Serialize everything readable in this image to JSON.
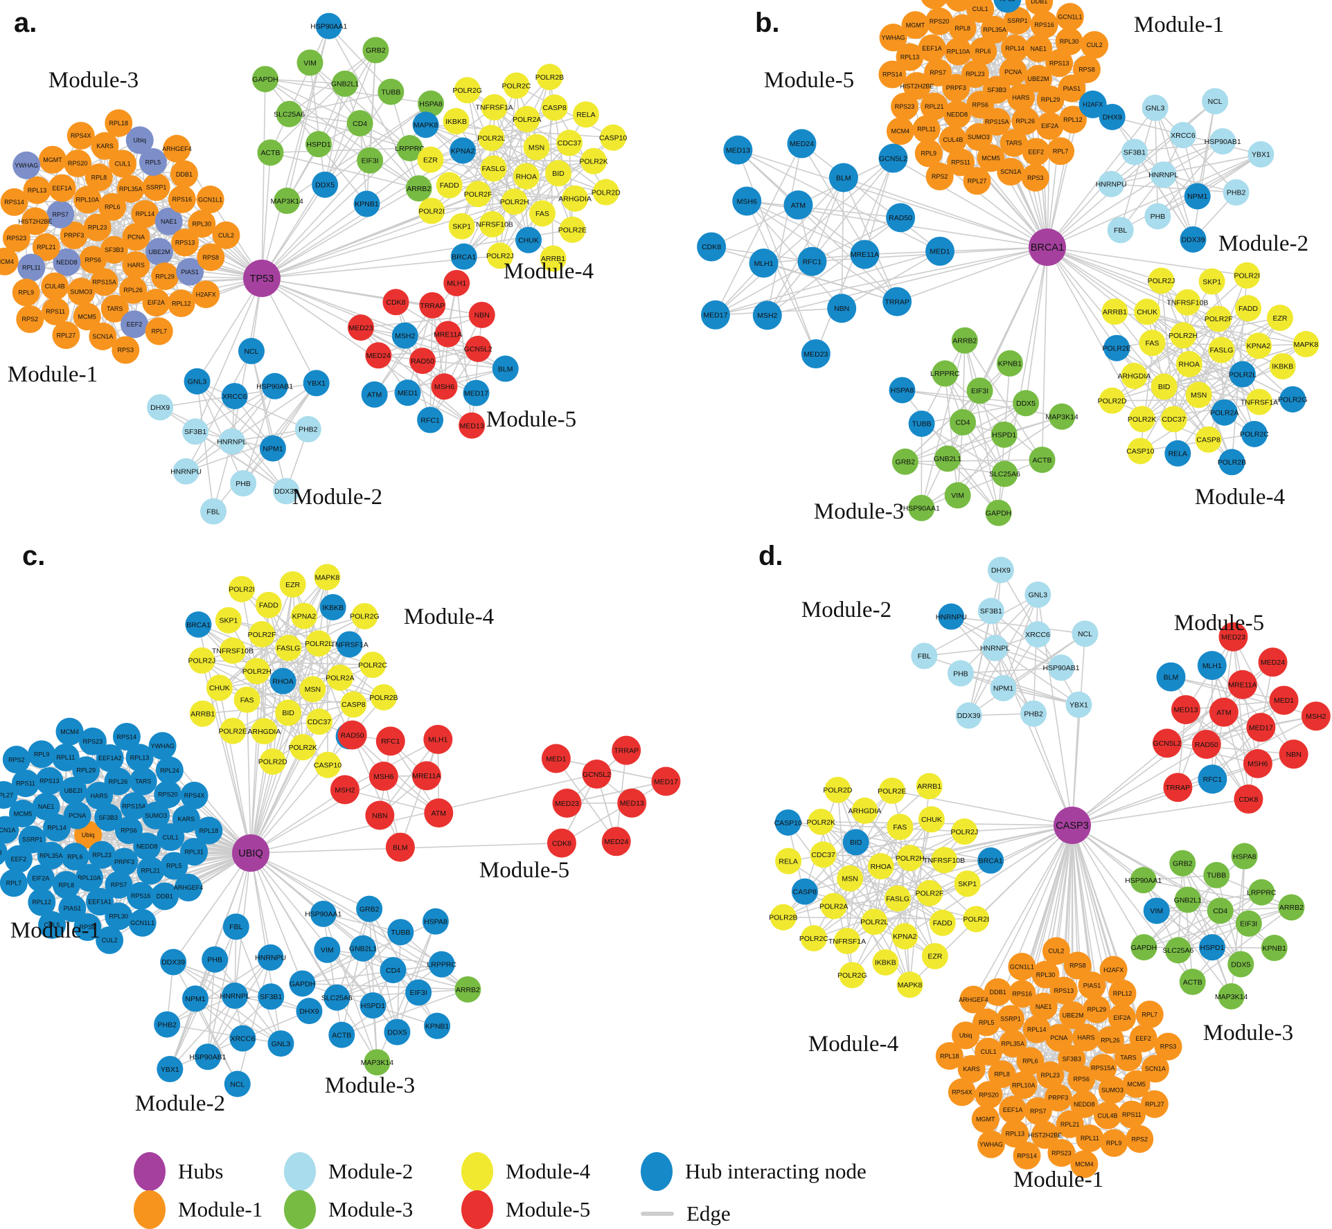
{
  "colors": {
    "hub": "#a6409f",
    "module1": "#f7941e",
    "module2": "#a9dcec",
    "module3": "#77bb43",
    "module4": "#f0e930",
    "module5": "#e9322f",
    "hub_interacting": "#1689c9",
    "slate_accent": "#7d8fc9",
    "edge": "#cdcdcd"
  },
  "legend": {
    "items": [
      {
        "label": "Hubs",
        "color": "hub"
      },
      {
        "label": "Module-1",
        "color": "module1"
      },
      {
        "label": "Module-2",
        "color": "module2"
      },
      {
        "label": "Module-3",
        "color": "module3"
      },
      {
        "label": "Module-4",
        "color": "module4"
      },
      {
        "label": "Module-5",
        "color": "module5"
      },
      {
        "label": "Hub interacting node",
        "color": "hub_interacting"
      },
      {
        "label": "Edge",
        "color": "edge",
        "type": "line"
      }
    ]
  },
  "gene_sets": {
    "module1": [
      "SF3B3",
      "RPL23",
      "PCNA",
      "RPS6",
      "RPL6",
      "HARS",
      "PRPF3",
      "RPL14",
      "RPS15A",
      "RPL10A",
      "UBE2M",
      "NEDD8",
      "RPL35A",
      "RPL26",
      "RPS7",
      "NAE1",
      "SUMO3",
      "RPL8",
      "RPL29",
      "RPL21",
      "SSRP1",
      "TARS",
      "EEF1A",
      "RPS13",
      "CUL4B",
      "CUL1",
      "EIF2A",
      "HIST2H2BE",
      "RPS16",
      "MCM5",
      "RPS20",
      "PIAS1",
      "RPL11",
      "RPL5",
      "EEF2",
      "RPL13",
      "RPL30",
      "RPS11",
      "KARS",
      "RPL12",
      "RPS23",
      "DDB1",
      "SCN1A",
      "MGMT",
      "RPS8",
      "RPL9",
      "Ubiq",
      "RPL7",
      "RPS14",
      "GCN1L1",
      "RPL27",
      "RPS4X",
      "H2AFX",
      "MCM4",
      "ARHGEF4",
      "RPS3",
      "YWHAG",
      "CUL2",
      "RPS2",
      "RPL18"
    ],
    "module2": [
      "HNRNPL",
      "XRCC6",
      "NPM1",
      "SF3B1",
      "HSP90AB1",
      "PHB",
      "GNL3",
      "PHB2",
      "HNRNPU",
      "NCL",
      "DDX39",
      "DHX9",
      "YBX1",
      "FBL"
    ],
    "module3": [
      "CD4",
      "HSPD1",
      "GNB2L1",
      "EIF3I",
      "SLC25A6",
      "TUBB",
      "DDX5",
      "VIM",
      "LRPPRC",
      "ACTB",
      "GRB2",
      "KPNB1",
      "GAPDH",
      "HSPA8",
      "MAP3K14",
      "HSP90AA1",
      "ARRB2"
    ],
    "module4": [
      "RHOA",
      "FASLG",
      "MSN",
      "POLR2H",
      "POLR2L",
      "BID",
      "POLR2F",
      "POLR2A",
      "FAS",
      "KPNA2",
      "CDC37",
      "TNFRSF10B",
      "TNFRSF1A",
      "ARHGDIA",
      "FADD",
      "CASP8",
      "CHUK",
      "IKBKB",
      "POLR2K",
      "SKP1",
      "POLR2C",
      "POLR2E",
      "EZR",
      "RELA",
      "POLR2J",
      "POLR2G",
      "POLR2D",
      "POLR2I",
      "POLR2B",
      "ARRB1",
      "MAPK8",
      "CASP10",
      "BRCA1"
    ],
    "module5": [
      "RAD50",
      "MRE11A",
      "MSH6",
      "MSH2",
      "GCN5L2",
      "MED1",
      "TRRAP",
      "MED17",
      "MED24",
      "NBN",
      "RFC1",
      "CDK8",
      "BLM",
      "ATM",
      "MLH1",
      "MED13",
      "MED23"
    ]
  },
  "panels": [
    {
      "id": "a",
      "letter": "a.",
      "hub": {
        "label": "TP53"
      },
      "clusters": [
        {
          "key": "m3",
          "label": "Module-3",
          "module": "module3",
          "nodes_ref": "module3",
          "hub_interacting": [
            "DDX5",
            "KPNB1",
            "HSP90AA1"
          ]
        },
        {
          "key": "m4",
          "label": "Module-4",
          "module": "module4",
          "nodes_ref": "module4",
          "hub_interacting": [
            "KPNA2",
            "CHUK",
            "MAPK8",
            "BRCA1"
          ]
        },
        {
          "key": "m1",
          "label": "Module-1",
          "module": "module1",
          "nodes_ref": "module1",
          "slate": [
            "RPL11",
            "RPL5",
            "EEF2",
            "UBE2M",
            "NEDD8",
            "RPS7",
            "NAE1",
            "Ubiq",
            "YWHAG",
            "PIAS1"
          ]
        },
        {
          "key": "m2",
          "label": "Module-2",
          "module": "module2",
          "nodes_ref": "module2",
          "hub_interacting": [
            "XRCC6",
            "NPM1",
            "HSP90AB1",
            "GNL3",
            "NCL",
            "YBX1"
          ]
        },
        {
          "key": "m5",
          "label": "Module-5",
          "module": "module5",
          "nodes_ref": "module5",
          "hub_interacting": [
            "MSH2",
            "MED17",
            "MED1",
            "RFC1",
            "BLM",
            "ATM"
          ]
        }
      ]
    },
    {
      "id": "b",
      "letter": "b.",
      "hub": {
        "label": "BRCA1"
      },
      "clusters": [
        {
          "key": "m1",
          "label": "Module-1",
          "module": "module1",
          "nodes_ref": "module1",
          "hub_interacting": [
            "H2AFX",
            "Ubiq",
            "RPL5"
          ]
        },
        {
          "key": "m5",
          "label": "Module-5",
          "module": "module5",
          "base": "hub_interacting",
          "nodes": [
            "RFC1",
            "ATM",
            "MRE11A",
            "MLH1",
            "BLM",
            "NBN",
            "MSH6",
            "RAD50",
            "MSH2",
            "MED24",
            "TRRAP",
            "CDK8",
            "GCN5L2",
            "MED23",
            "MED13",
            "MED1",
            "MED17"
          ]
        },
        {
          "key": "m2",
          "label": "Module-2",
          "module": "module2",
          "nodes_ref": "module2",
          "hub_interacting": [
            "NPM1",
            "DHX9",
            "DDX39"
          ]
        },
        {
          "key": "m4",
          "label": "Module-4",
          "module": "module4",
          "nodes": [
            "RHOA",
            "FASLG",
            "MSN",
            "POLR2H",
            "POLR2L",
            "BID",
            "POLR2F",
            "POLR2A",
            "FAS",
            "KPNA2",
            "CDC37",
            "TNFRSF10B",
            "TNFRSF1A",
            "ARHGDIA",
            "FADD",
            "CASP8",
            "CHUK",
            "IKBKB",
            "POLR2K",
            "SKP1",
            "POLR2C",
            "POLR2E",
            "EZR",
            "RELA",
            "POLR2J",
            "POLR2G",
            "POLR2D",
            "POLR2I",
            "POLR2B",
            "ARRB1",
            "MAPK8",
            "CASP10"
          ],
          "hub_interacting": [
            "POLR2A",
            "POLR2B",
            "POLR2C",
            "POLR2L",
            "POLR2E",
            "POLR2G",
            "RELA"
          ]
        },
        {
          "key": "m3",
          "label": "Module-3",
          "module": "module3",
          "nodes_ref": "module3",
          "hub_interacting": [
            "TUBB",
            "HSPA8"
          ]
        }
      ]
    },
    {
      "id": "c",
      "letter": "c.",
      "hub": {
        "label": "UBIQ"
      },
      "clusters": [
        {
          "key": "m4",
          "label": "Module-4",
          "module": "module4",
          "nodes_ref": "module4",
          "hub_interacting": [
            "BRCA1",
            "IKBKB",
            "RELA",
            "RHOA",
            "TNFRSF1A"
          ]
        },
        {
          "key": "m1",
          "label": "Module-1",
          "module": "module1",
          "base": "hub_interacting",
          "nodes": [
            "Ubiq",
            "SF3B3",
            "RPL23",
            "PCNA",
            "RPS6",
            "RPL6",
            "HARS",
            "PRPF3",
            "RPL14",
            "RPS15A",
            "RPL10A",
            "UBE2I",
            "NEDD8",
            "RPL35A",
            "RPL26",
            "RPS7",
            "NAE1",
            "SUMO3",
            "RPL8",
            "RPL29",
            "RPL21",
            "SSRP1",
            "TARS",
            "EEF1A1",
            "RPS13",
            "CUL1",
            "EIF2A",
            "EEF1A2",
            "RPS16",
            "MCM5",
            "RPS20",
            "PIAS1",
            "RPL11",
            "RPL5",
            "EEF2",
            "RPL13",
            "RPL30",
            "RPS11",
            "KARS",
            "RPL12",
            "RPS23",
            "DDB1",
            "SCN1A",
            "RPL24",
            "RPS8",
            "RPL9",
            "RPL31",
            "RPL7",
            "RPS14",
            "GCN1L1",
            "RPL27",
            "RPS4X",
            "CUL5",
            "MCM4",
            "ARHGEF4",
            "RPS3",
            "YWHAG",
            "CUL2",
            "RPS2",
            "RPL18"
          ],
          "module_color": [
            "Ubiq"
          ]
        },
        {
          "key": "m5L",
          "label": "",
          "module": "module5",
          "nodes": [
            "MSH6",
            "MRE11A",
            "NBN",
            "RFC1",
            "ATM",
            "MSH2",
            "MLH1",
            "BLM",
            "RAD50"
          ]
        },
        {
          "key": "m5R",
          "label": "Module-5",
          "module": "module5",
          "nodes": [
            "GCN5L2",
            "MED13",
            "MED23",
            "TRRAP",
            "MED24",
            "MED1",
            "MED17",
            "CDK8"
          ]
        },
        {
          "key": "m2",
          "label": "Module-2",
          "module": "module2",
          "base": "hub_interacting",
          "nodes_ref": "module2"
        },
        {
          "key": "m3",
          "label": "Module-3",
          "module": "module3",
          "base": "hub_interacting",
          "nodes_ref": "module3",
          "module_color": [
            "ARRB2",
            "MAP3K14"
          ]
        }
      ]
    },
    {
      "id": "d",
      "letter": "d.",
      "hub": {
        "label": "CASP3"
      },
      "clusters": [
        {
          "key": "m2",
          "label": "Module-2",
          "module": "module2",
          "nodes_ref": "module2",
          "hub_interacting": [
            "HNRNPU"
          ]
        },
        {
          "key": "m5",
          "label": "Module-5",
          "module": "module5",
          "nodes": [
            "ATM",
            "MED17",
            "RAD50",
            "MRE11A",
            "MSH6",
            "MED13",
            "MED1",
            "RFC1",
            "MLH1",
            "NBN",
            "GCN5L2",
            "MED24",
            "CDK8",
            "BLM",
            "MSH2",
            "TRRAP",
            "MED23"
          ],
          "hub_interacting": [
            "RFC1",
            "MLH1",
            "BLM"
          ]
        },
        {
          "key": "m4",
          "label": "Module-4",
          "module": "module4",
          "nodes_ref": "module4",
          "hub_interacting": [
            "BRCA1",
            "BID",
            "CASP8",
            "CASP10"
          ]
        },
        {
          "key": "m3",
          "label": "Module-3",
          "module": "module3",
          "nodes_ref": "module3",
          "hub_interacting": [
            "VIM",
            "HSPD1"
          ]
        },
        {
          "key": "m1",
          "label": "Module-1",
          "module": "module1",
          "nodes_ref": "module1"
        }
      ]
    }
  ]
}
